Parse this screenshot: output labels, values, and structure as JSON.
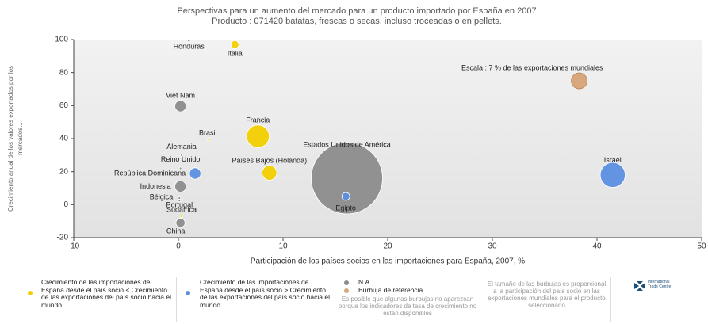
{
  "chart_data": {
    "type": "bubble",
    "title": "Perspectivas para un aumento del mercado para un producto importado por España en 2007",
    "subtitle": "Producto : 071420 batatas, frescas o secas, incluso troceadas o en pellets.",
    "xlabel": "Participación de los países socios en las importaciones para España, 2007, %",
    "ylabel": [
      "Crecimiento anual de los valores exportados por los",
      "mercados..."
    ],
    "xlim": [
      -10,
      50
    ],
    "xticks": [
      -10,
      0,
      10,
      20,
      30,
      40,
      50
    ],
    "ylim": [
      -20,
      100
    ],
    "yticks": [
      -20,
      0,
      20,
      40,
      60,
      80,
      100
    ],
    "series": [
      {
        "name": "Crecimiento de las importaciones de España desde el país socio < Crecimiento de las exportaciones del país socio hacia el mundo",
        "color": "#f2cf00",
        "labels": [
          "Italia",
          "Francia",
          "Brasil",
          "Países Bajos (Holanda)",
          "Sudafrica"
        ],
        "x": [
          5.4,
          7.6,
          2.9,
          8.7,
          0.3
        ],
        "values": [
          97,
          41.4,
          39.5,
          19.3,
          -7
        ],
        "sizes": [
          3.5,
          10,
          1.2,
          6.5,
          1.2
        ]
      },
      {
        "name": "Crecimiento de las importaciones de España desde el país socio > Crecimiento de las exportaciones del país socio hacia el mundo",
        "color": "#5b8fe0",
        "labels": [
          "República Dominicana",
          "Israel",
          "Egipto"
        ],
        "x": [
          1.6,
          41.5,
          16
        ],
        "values": [
          18.9,
          18,
          5
        ],
        "sizes": [
          5,
          11,
          3.5
        ]
      },
      {
        "name": "N.A.",
        "color": "#8c8c8c",
        "labels": [
          "Honduras",
          "Viet Nam",
          "Alemania",
          "Reino Unido",
          "Estados Unidos de América",
          "Indonesia",
          "Bélgica",
          "Portugal",
          "China"
        ],
        "x": [
          1,
          0.2,
          0.3,
          0.2,
          16.1,
          0.2,
          0.1,
          0.1,
          0.2
        ],
        "values": [
          99.5,
          59.7,
          30,
          22,
          16,
          11,
          4,
          2.5,
          -11
        ],
        "sizes": [
          1.2,
          5,
          1,
          1,
          31.5,
          5,
          0.8,
          0.8,
          4
        ]
      }
    ],
    "reference": {
      "name": "Burbuja de referencia",
      "label": "Escala : 7 % de las exportaciones mundiales",
      "x": 38.3,
      "value": 75,
      "size": 7,
      "color": "#d8a77b"
    },
    "notes": [
      "Es posible que algunas burbujas no aparezcan porque los indicadores de tasa de crecimiento no están disponibles",
      "El tamaño de las burbujas es proporcional a la participación del país socio en las exportaciones mundiales para el producto seleccionado"
    ],
    "logo": "International Trade Centre"
  }
}
